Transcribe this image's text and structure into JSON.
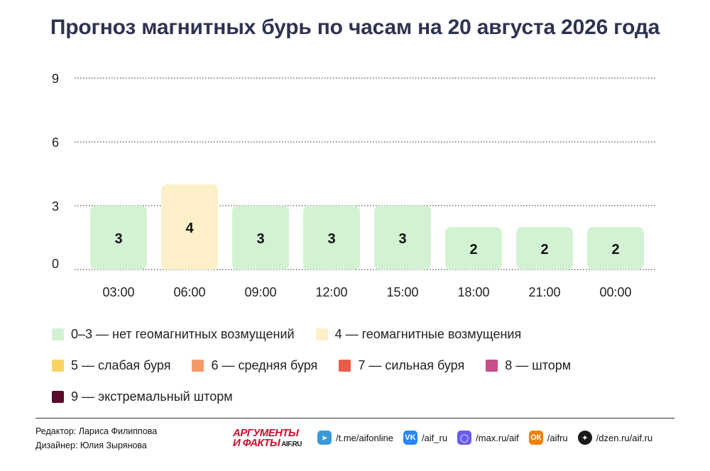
{
  "title": "Прогноз магнитных бурь по часам на 20 августа 2026 года",
  "chart_data": {
    "type": "bar",
    "categories": [
      "03:00",
      "06:00",
      "09:00",
      "12:00",
      "15:00",
      "18:00",
      "21:00",
      "00:00"
    ],
    "values": [
      3,
      4,
      3,
      3,
      3,
      2,
      2,
      2
    ],
    "ylim": [
      0,
      9
    ],
    "yticks": [
      0,
      3,
      6,
      9
    ],
    "grid": true,
    "data_labels": true,
    "legend_position": "bottom"
  },
  "levels": [
    {
      "label": "0–3 — нет геомагнитных возмущений",
      "color": "#d3f2d3",
      "min": 0,
      "max": 3
    },
    {
      "label": "4 — геомагнитные возмущения",
      "color": "#fdf0c8",
      "min": 4,
      "max": 4
    },
    {
      "label": "5 — слабая буря",
      "color": "#f8d464",
      "min": 5,
      "max": 5
    },
    {
      "label": "6 — средняя буря",
      "color": "#f4996a",
      "min": 6,
      "max": 6
    },
    {
      "label": "7 — сильная буря",
      "color": "#ea5b4c",
      "min": 7,
      "max": 7
    },
    {
      "label": "8 — шторм",
      "color": "#c94d86",
      "min": 8,
      "max": 8
    },
    {
      "label": "9 — экстремальный шторм",
      "color": "#5a0a2a",
      "min": 9,
      "max": 9
    }
  ],
  "credits": {
    "editor": "Редактор: Лариса Филиппова",
    "designer": "Дизайнер: Юлия Зырянова"
  },
  "logo": {
    "line1": "АРГУМЕНТЫ",
    "line2": "И ФАКТЫ",
    "site": "AIF.RU"
  },
  "socials": [
    {
      "icon": "telegram-icon",
      "text": "/t.me/aifonline",
      "color": "#3a9ad9"
    },
    {
      "icon": "vk-icon",
      "text": "/aif_ru",
      "color": "#2787f5"
    },
    {
      "icon": "max-icon",
      "text": "/max.ru/aif",
      "color": "#6a5cf0"
    },
    {
      "icon": "ok-icon",
      "text": "/aifru",
      "color": "#ee8208"
    },
    {
      "icon": "dzen-icon",
      "text": "/dzen.ru/aif.ru",
      "color": "#1a1a1a"
    }
  ]
}
